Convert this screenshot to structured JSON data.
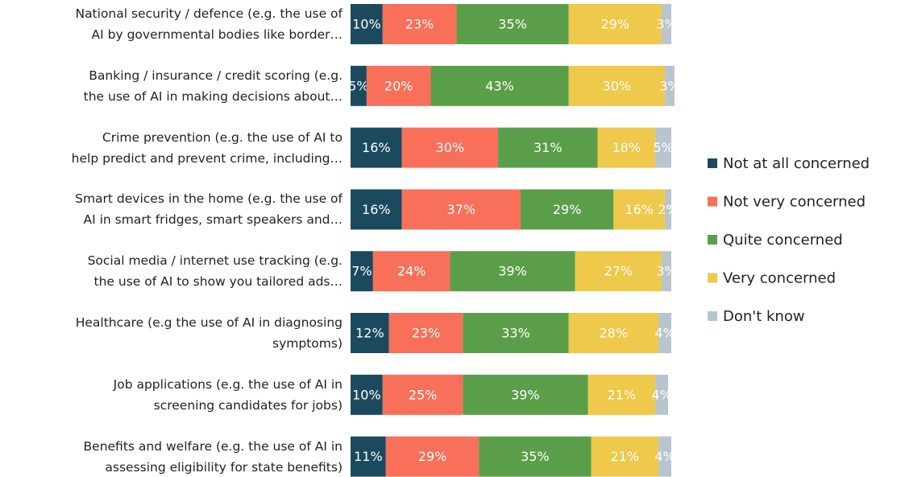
{
  "chart_data": {
    "type": "stacked-bar-horizontal",
    "categories": [
      "National security / defence (e.g. the use of\nAI by governmental bodies like border…",
      "Banking / insurance / credit scoring (e.g.\nthe use of AI in making decisions about…",
      "Crime prevention (e.g. the use of AI to\nhelp predict and prevent crime, including…",
      "Smart devices in the home (e.g. the use of\nAI in smart fridges, smart speakers and…",
      "Social media / internet use tracking (e.g.\nthe use of AI to show you tailored ads…",
      "Healthcare (e.g the use of AI in diagnosing\nsymptoms)",
      "Job applications (e.g. the use of AI in\nscreening candidates for jobs)",
      "Benefits and welfare (e.g. the use of AI in\nassessing eligibility for state benefits)"
    ],
    "series": [
      {
        "name": "Not at all concerned",
        "color": "#1b4a5e",
        "values": [
          10,
          5,
          16,
          16,
          7,
          12,
          10,
          11
        ],
        "value_labels": [
          "10%",
          "5%",
          "16%",
          "16%",
          "7%",
          "12%",
          "10%",
          "11%"
        ]
      },
      {
        "name": "Not very concerned",
        "color": "#f8705a",
        "values": [
          23,
          20,
          30,
          37,
          24,
          23,
          25,
          29
        ],
        "value_labels": [
          "23%",
          "20%",
          "30%",
          "37%",
          "24%",
          "23%",
          "25%",
          "29%"
        ]
      },
      {
        "name": "Quite concerned",
        "color": "#5b9e49",
        "values": [
          35,
          43,
          31,
          29,
          39,
          33,
          39,
          35
        ],
        "value_labels": [
          "35%",
          "43%",
          "31%",
          "29%",
          "39%",
          "33%",
          "39%",
          "35%"
        ]
      },
      {
        "name": "Very concerned",
        "color": "#eec94b",
        "values": [
          29,
          30,
          18,
          16,
          27,
          28,
          21,
          21
        ],
        "value_labels": [
          "29%",
          "30%",
          "18%",
          "16%",
          "27%",
          "28%",
          "21%",
          "21%"
        ]
      },
      {
        "name": "Don't know",
        "color": "#b9c5cd",
        "values": [
          3,
          3,
          5,
          2,
          3,
          4,
          4,
          4
        ],
        "value_labels": [
          "3%",
          "3%",
          "5%",
          "2%",
          "3%",
          "4%",
          "4%",
          "4%"
        ]
      }
    ],
    "legend": "right"
  }
}
